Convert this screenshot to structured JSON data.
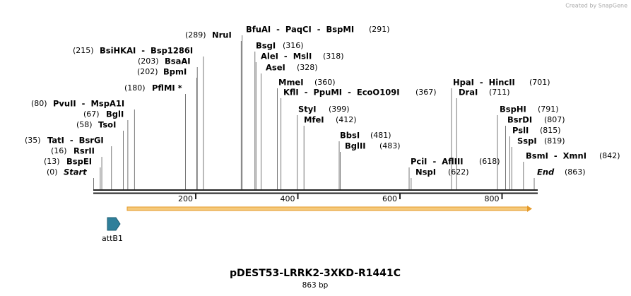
{
  "credit": "Created by SnapGene",
  "title": "pDEST53-LRRK2-3XKD-R1441C",
  "length": "863 bp",
  "feature": "attB1",
  "ticks": [
    "200",
    "400",
    "600",
    "800"
  ],
  "sites": [
    {
      "name": "NruI",
      "position": "(289)"
    },
    {
      "name": "BfuAI  -  PaqCI  -  BspMI",
      "position": "(291)"
    },
    {
      "name": "BsiHKAI  -  Bsp1286I",
      "position": "(215)"
    },
    {
      "name": "BsgI",
      "position": "(316)"
    },
    {
      "name": "BsaAI",
      "position": "(203)"
    },
    {
      "name": "AleI  -  MslI",
      "position": "(318)"
    },
    {
      "name": "BpmI",
      "position": "(202)"
    },
    {
      "name": "AseI",
      "position": "(328)"
    },
    {
      "name": "MmeI",
      "position": "(360)"
    },
    {
      "name": "PflMI *",
      "position": "(180)"
    },
    {
      "name": "KflI  -  PpuMI  -  EcoO109I",
      "position": "(367)"
    },
    {
      "name": "HpaI  -  HincII",
      "position": "(701)"
    },
    {
      "name": "DraI",
      "position": "(711)"
    },
    {
      "name": "PvuII  -  MspA1I",
      "position": "(80)"
    },
    {
      "name": "StyI",
      "position": "(399)"
    },
    {
      "name": "BspHI",
      "position": "(791)"
    },
    {
      "name": "BglI",
      "position": "(67)"
    },
    {
      "name": "MfeI",
      "position": "(412)"
    },
    {
      "name": "BsrDI",
      "position": "(807)"
    },
    {
      "name": "TsoI",
      "position": "(58)"
    },
    {
      "name": "PslI",
      "position": "(815)"
    },
    {
      "name": "BbsI",
      "position": "(481)"
    },
    {
      "name": "TatI  -  BsrGI",
      "position": "(35)"
    },
    {
      "name": "SspI",
      "position": "(819)"
    },
    {
      "name": "BglII",
      "position": "(483)"
    },
    {
      "name": "RsrII",
      "position": "(16)"
    },
    {
      "name": "PciI  -  AflIII",
      "position": "(618)"
    },
    {
      "name": "BsmI  -  XmnI",
      "position": "(842)"
    },
    {
      "name": "BspEI",
      "position": "(13)"
    },
    {
      "name": "NspI",
      "position": "(622)"
    },
    {
      "name": "Start",
      "position": "(0)"
    },
    {
      "name": "End",
      "position": "(863)"
    }
  ]
}
